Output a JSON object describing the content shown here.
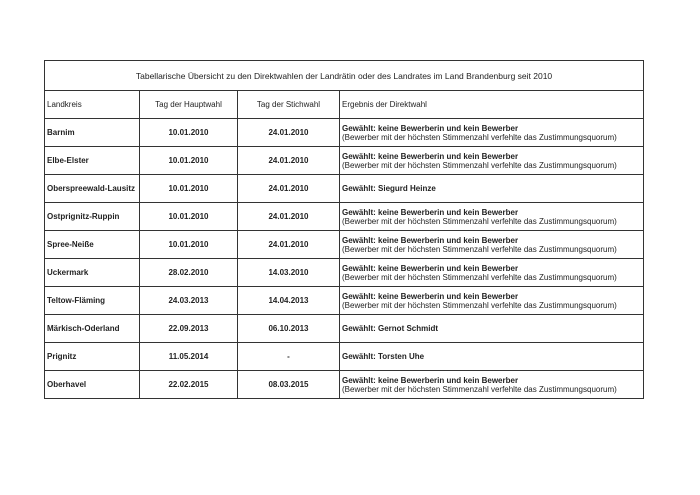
{
  "table": {
    "title": "Tabellarische Übersicht zu den Direktwahlen der Landrätin oder des Landrates im Land Brandenburg seit 2010",
    "headers": [
      "Landkreis",
      "Tag der Hauptwahl",
      "Tag der Stichwahl",
      "Ergebnis der Direktwahl"
    ],
    "rows": [
      {
        "landkreis": "Barnim",
        "hauptwahl": "10.01.2010",
        "stichwahl": "24.01.2010",
        "ergebnis": "Gewählt: keine Bewerberin und kein Bewerber",
        "hinweis": "(Bewerber mit der höchsten Stimmenzahl verfehlte das Zustimmungsquorum)"
      },
      {
        "landkreis": "Elbe-Elster",
        "hauptwahl": "10.01.2010",
        "stichwahl": "24.01.2010",
        "ergebnis": "Gewählt: keine Bewerberin und kein Bewerber",
        "hinweis": "(Bewerber mit der höchsten Stimmenzahl verfehlte das Zustimmungsquorum)"
      },
      {
        "landkreis": "Oberspreewald-Lausitz",
        "hauptwahl": "10.01.2010",
        "stichwahl": "24.01.2010",
        "ergebnis": "Gewählt: Siegurd Heinze"
      },
      {
        "landkreis": "Ostprignitz-Ruppin",
        "hauptwahl": "10.01.2010",
        "stichwahl": "24.01.2010",
        "ergebnis": "Gewählt: keine Bewerberin und kein Bewerber",
        "hinweis": "(Bewerber mit der höchsten Stimmenzahl verfehlte das Zustimmungsquorum)"
      },
      {
        "landkreis": "Spree-Neiße",
        "hauptwahl": "10.01.2010",
        "stichwahl": "24.01.2010",
        "ergebnis": "Gewählt: keine Bewerberin und kein Bewerber",
        "hinweis": "(Bewerber mit der höchsten Stimmenzahl verfehlte das Zustimmungsquorum)"
      },
      {
        "landkreis": "Uckermark",
        "hauptwahl": "28.02.2010",
        "stichwahl": "14.03.2010",
        "ergebnis": "Gewählt: keine Bewerberin und kein Bewerber",
        "hinweis": "(Bewerber mit der höchsten Stimmenzahl verfehlte das Zustimmungsquorum)"
      },
      {
        "landkreis": "Teltow-Fläming",
        "hauptwahl": "24.03.2013",
        "stichwahl": "14.04.2013",
        "ergebnis": "Gewählt: keine Bewerberin und kein Bewerber",
        "hinweis": "(Bewerber mit der höchsten Stimmenzahl verfehlte das Zustimmungsquorum)"
      },
      {
        "landkreis": "Märkisch-Oderland",
        "hauptwahl": "22.09.2013",
        "stichwahl": "06.10.2013",
        "ergebnis": "Gewählt: Gernot Schmidt"
      },
      {
        "landkreis": "Prignitz",
        "hauptwahl": "11.05.2014",
        "stichwahl": "-",
        "ergebnis": "Gewählt: Torsten Uhe"
      },
      {
        "landkreis": "Oberhavel",
        "hauptwahl": "22.02.2015",
        "stichwahl": "08.03.2015",
        "ergebnis": "Gewählt: keine Bewerberin und kein Bewerber",
        "hinweis": "(Bewerber mit der höchsten Stimmenzahl verfehlte das Zustimmungsquorum)"
      }
    ]
  }
}
